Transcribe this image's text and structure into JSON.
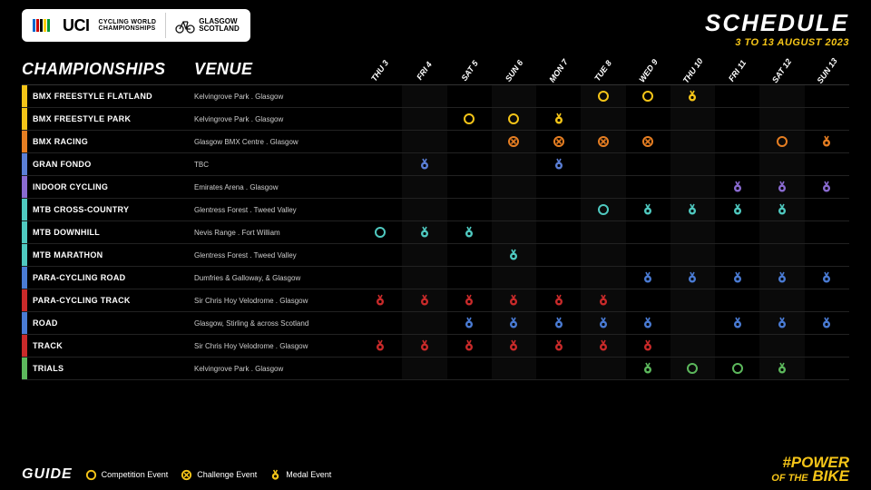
{
  "header": {
    "uci_label": "UCI",
    "uci_sub1": "CYCLING WORLD",
    "uci_sub2": "CHAMPIONSHIPS",
    "glasgow1": "GLASGOW",
    "glasgow2": "SCOTLAND",
    "schedule_title": "SCHEDULE",
    "schedule_dates": "3 TO 13 AUGUST 2023",
    "dates_color": "#f5c518",
    "uci_stripe_colors": [
      "#0066cc",
      "#cc0000",
      "#000000",
      "#ffcc00",
      "#009933"
    ]
  },
  "columns": {
    "championships": "CHAMPIONSHIPS",
    "venue": "VENUE"
  },
  "days": [
    "THU 3",
    "FRI 4",
    "SAT 5",
    "SUN 6",
    "MON 7",
    "TUE 8",
    "WED 9",
    "THU 10",
    "FRI 11",
    "SAT 12",
    "SUN 13"
  ],
  "icon_types": {
    "competition": "circle",
    "challenge": "circle-x",
    "medal": "medal"
  },
  "rows": [
    {
      "name": "BMX FREESTYLE FLATLAND",
      "venue": "Kelvingrove Park . Glasgow",
      "color": "#f5c518",
      "events": [
        null,
        null,
        null,
        null,
        null,
        "competition",
        "competition",
        "medal",
        null,
        null,
        null
      ]
    },
    {
      "name": "BMX FREESTYLE PARK",
      "venue": "Kelvingrove Park . Glasgow",
      "color": "#f5c518",
      "events": [
        null,
        null,
        "competition",
        "competition",
        "medal",
        null,
        null,
        null,
        null,
        null,
        null
      ]
    },
    {
      "name": "BMX RACING",
      "venue": "Glasgow BMX Centre . Glasgow",
      "color": "#e67e22",
      "events": [
        null,
        null,
        null,
        "challenge",
        "challenge",
        "challenge",
        "challenge",
        null,
        null,
        "competition",
        "medal"
      ]
    },
    {
      "name": "GRAN FONDO",
      "venue": "TBC",
      "color": "#5b7fd6",
      "events": [
        null,
        "medal",
        null,
        null,
        "medal",
        null,
        null,
        null,
        null,
        null,
        null
      ]
    },
    {
      "name": "INDOOR CYCLING",
      "venue": "Emirates Arena . Glasgow",
      "color": "#8a6bd1",
      "events": [
        null,
        null,
        null,
        null,
        null,
        null,
        null,
        null,
        "medal",
        "medal",
        "medal"
      ]
    },
    {
      "name": "MTB CROSS-COUNTRY",
      "venue": "Glentress Forest . Tweed Valley",
      "color": "#4fc9c0",
      "events": [
        null,
        null,
        null,
        null,
        null,
        "competition",
        "medal",
        "medal",
        "medal",
        "medal",
        null
      ]
    },
    {
      "name": "MTB DOWNHILL",
      "venue": "Nevis Range . Fort William",
      "color": "#4fc9c0",
      "events": [
        "competition",
        "medal",
        "medal",
        null,
        null,
        null,
        null,
        null,
        null,
        null,
        null
      ]
    },
    {
      "name": "MTB MARATHON",
      "venue": "Glentress Forest . Tweed Valley",
      "color": "#4fc9c0",
      "events": [
        null,
        null,
        null,
        "medal",
        null,
        null,
        null,
        null,
        null,
        null,
        null
      ]
    },
    {
      "name": "PARA-CYCLING ROAD",
      "venue": "Dumfries & Galloway, & Glasgow",
      "color": "#4a7bd4",
      "events": [
        null,
        null,
        null,
        null,
        null,
        null,
        "medal",
        "medal",
        "medal",
        "medal",
        "medal"
      ]
    },
    {
      "name": "PARA-CYCLING TRACK",
      "venue": "Sir Chris Hoy Velodrome . Glasgow",
      "color": "#c92a2a",
      "events": [
        "medal",
        "medal",
        "medal",
        "medal",
        "medal",
        "medal",
        null,
        null,
        null,
        null,
        null
      ]
    },
    {
      "name": "ROAD",
      "venue": "Glasgow, Stirling & across Scotland",
      "color": "#4a7bd4",
      "events": [
        null,
        null,
        "medal",
        "medal",
        "medal",
        "medal",
        "medal",
        null,
        "medal",
        "medal",
        "medal"
      ]
    },
    {
      "name": "TRACK",
      "venue": "Sir Chris Hoy Velodrome . Glasgow",
      "color": "#c92a2a",
      "events": [
        "medal",
        "medal",
        "medal",
        "medal",
        "medal",
        "medal",
        "medal",
        null,
        null,
        null,
        null
      ]
    },
    {
      "name": "TRIALS",
      "venue": "Kelvingrove Park . Glasgow",
      "color": "#5cb85c",
      "events": [
        null,
        null,
        null,
        null,
        null,
        null,
        "medal",
        "competition",
        "competition",
        "medal",
        null
      ]
    }
  ],
  "legend": {
    "title": "GUIDE",
    "color": "#f5c518",
    "items": [
      {
        "type": "competition",
        "label": "Competition Event"
      },
      {
        "type": "challenge",
        "label": "Challenge Event"
      },
      {
        "type": "medal",
        "label": "Medal Event"
      }
    ]
  },
  "hashtag": {
    "line1": "#POWER",
    "line2": "OF THE",
    "line3": "BIKE",
    "color": "#f5c518"
  }
}
